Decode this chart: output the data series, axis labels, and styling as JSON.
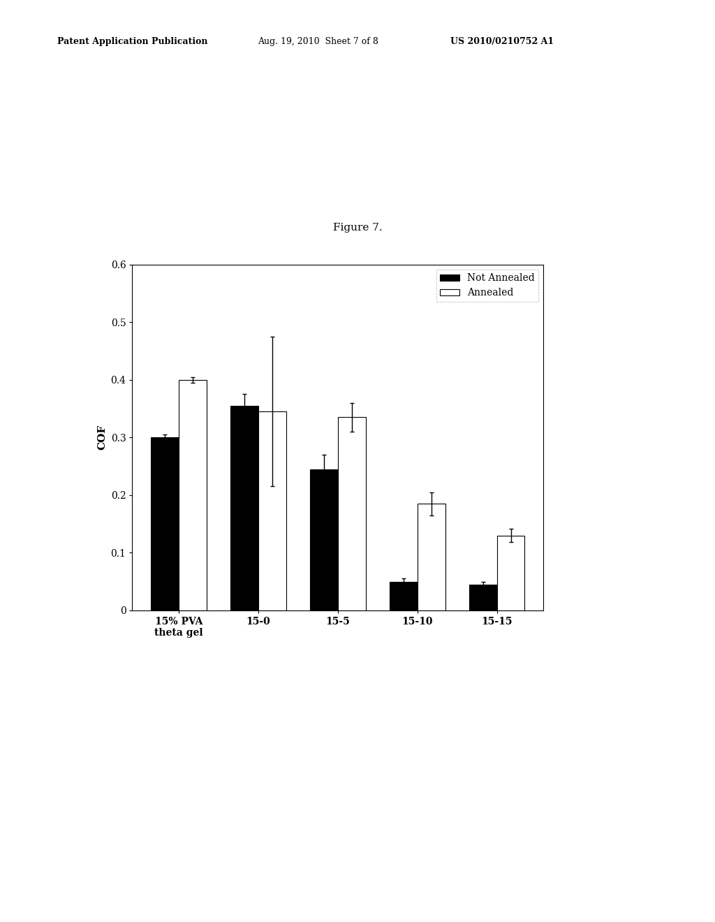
{
  "categories": [
    "15% PVA\ntheta gel",
    "15-0",
    "15-5",
    "15-10",
    "15-15"
  ],
  "not_annealed_values": [
    0.3,
    0.355,
    0.245,
    0.05,
    0.045
  ],
  "not_annealed_errors": [
    0.005,
    0.02,
    0.025,
    0.005,
    0.004
  ],
  "annealed_values": [
    0.4,
    0.345,
    0.335,
    0.185,
    0.13
  ],
  "annealed_errors": [
    0.005,
    0.13,
    0.025,
    0.02,
    0.012
  ],
  "not_annealed_color": "#000000",
  "annealed_color": "#ffffff",
  "bar_edge_color": "#000000",
  "ylabel": "COF",
  "ylim": [
    0,
    0.6
  ],
  "yticks": [
    0,
    0.1,
    0.2,
    0.3,
    0.4,
    0.5,
    0.6
  ],
  "legend_labels": [
    "Not Annealed",
    "Annealed"
  ],
  "figure_title": "Figure 7.",
  "header_left": "Patent Application Publication",
  "header_middle": "Aug. 19, 2010  Sheet 7 of 8",
  "header_right": "US 2010/0210752 A1",
  "background_color": "#ffffff",
  "bar_width": 0.35,
  "fig_width": 10.24,
  "fig_height": 13.2,
  "dpi": 100
}
